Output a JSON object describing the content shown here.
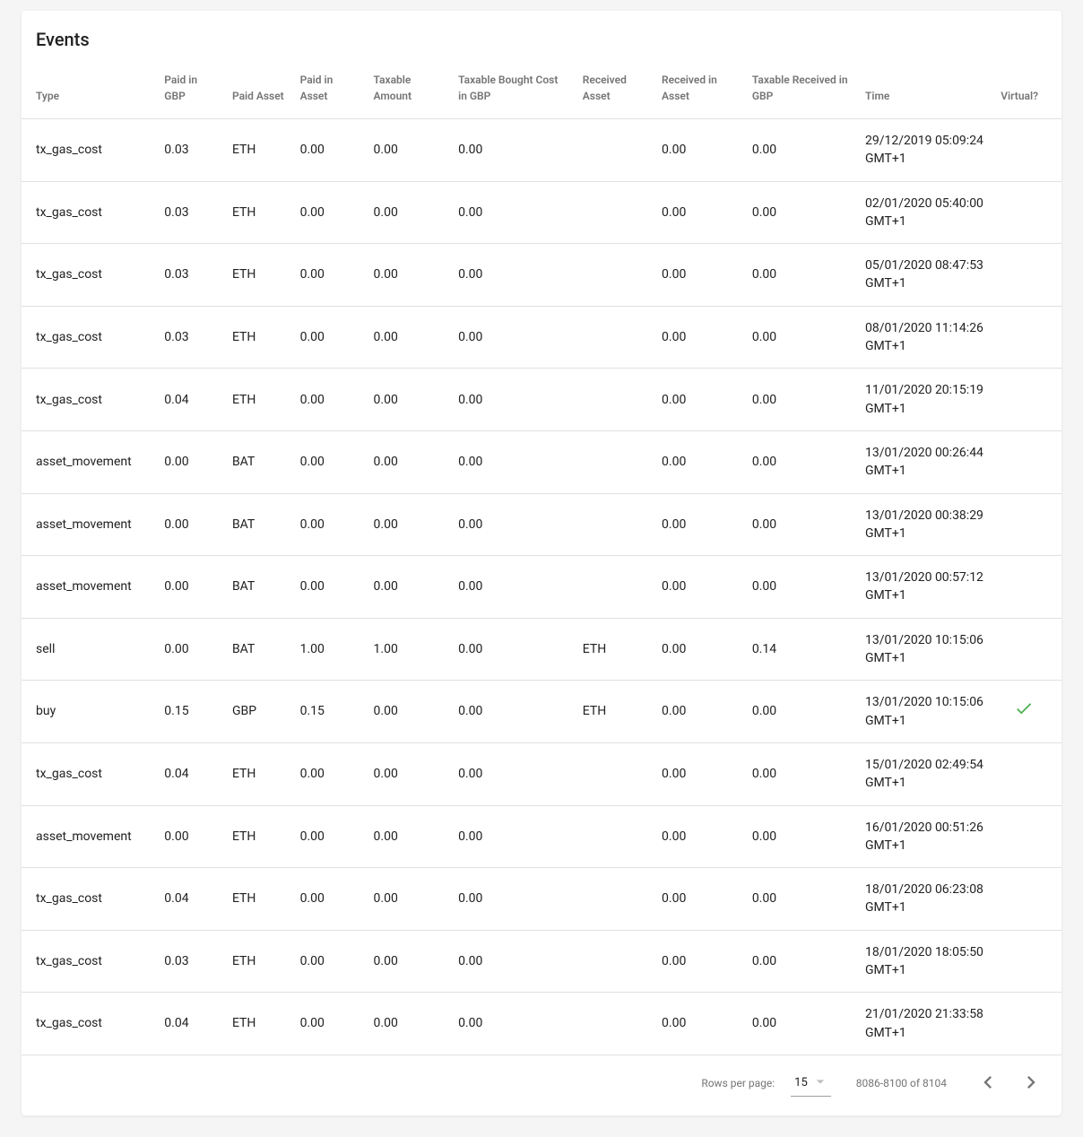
{
  "title": "Events",
  "columns": [
    "Type",
    "Paid in GBP",
    "Paid Asset",
    "Paid in Asset",
    "Taxable Amount",
    "Taxable Bought Cost in GBP",
    "Received Asset",
    "Received in Asset",
    "Taxable Received in GBP",
    "Time",
    "Virtual?"
  ],
  "rows": [
    {
      "type": "tx_gas_cost",
      "paid_in_gbp": "0.03",
      "paid_asset": "ETH",
      "paid_in_asset": "0.00",
      "taxable_amount": "0.00",
      "taxable_bought": "0.00",
      "received_asset": "",
      "received_in_asset": "0.00",
      "taxable_received": "0.00",
      "time": "29/12/2019 05:09:24 GMT+1",
      "virtual": false
    },
    {
      "type": "tx_gas_cost",
      "paid_in_gbp": "0.03",
      "paid_asset": "ETH",
      "paid_in_asset": "0.00",
      "taxable_amount": "0.00",
      "taxable_bought": "0.00",
      "received_asset": "",
      "received_in_asset": "0.00",
      "taxable_received": "0.00",
      "time": "02/01/2020 05:40:00 GMT+1",
      "virtual": false
    },
    {
      "type": "tx_gas_cost",
      "paid_in_gbp": "0.03",
      "paid_asset": "ETH",
      "paid_in_asset": "0.00",
      "taxable_amount": "0.00",
      "taxable_bought": "0.00",
      "received_asset": "",
      "received_in_asset": "0.00",
      "taxable_received": "0.00",
      "time": "05/01/2020 08:47:53 GMT+1",
      "virtual": false
    },
    {
      "type": "tx_gas_cost",
      "paid_in_gbp": "0.03",
      "paid_asset": "ETH",
      "paid_in_asset": "0.00",
      "taxable_amount": "0.00",
      "taxable_bought": "0.00",
      "received_asset": "",
      "received_in_asset": "0.00",
      "taxable_received": "0.00",
      "time": "08/01/2020 11:14:26 GMT+1",
      "virtual": false
    },
    {
      "type": "tx_gas_cost",
      "paid_in_gbp": "0.04",
      "paid_asset": "ETH",
      "paid_in_asset": "0.00",
      "taxable_amount": "0.00",
      "taxable_bought": "0.00",
      "received_asset": "",
      "received_in_asset": "0.00",
      "taxable_received": "0.00",
      "time": "11/01/2020 20:15:19 GMT+1",
      "virtual": false
    },
    {
      "type": "asset_movement",
      "paid_in_gbp": "0.00",
      "paid_asset": "BAT",
      "paid_in_asset": "0.00",
      "taxable_amount": "0.00",
      "taxable_bought": "0.00",
      "received_asset": "",
      "received_in_asset": "0.00",
      "taxable_received": "0.00",
      "time": "13/01/2020 00:26:44 GMT+1",
      "virtual": false
    },
    {
      "type": "asset_movement",
      "paid_in_gbp": "0.00",
      "paid_asset": "BAT",
      "paid_in_asset": "0.00",
      "taxable_amount": "0.00",
      "taxable_bought": "0.00",
      "received_asset": "",
      "received_in_asset": "0.00",
      "taxable_received": "0.00",
      "time": "13/01/2020 00:38:29 GMT+1",
      "virtual": false
    },
    {
      "type": "asset_movement",
      "paid_in_gbp": "0.00",
      "paid_asset": "BAT",
      "paid_in_asset": "0.00",
      "taxable_amount": "0.00",
      "taxable_bought": "0.00",
      "received_asset": "",
      "received_in_asset": "0.00",
      "taxable_received": "0.00",
      "time": "13/01/2020 00:57:12 GMT+1",
      "virtual": false
    },
    {
      "type": "sell",
      "paid_in_gbp": "0.00",
      "paid_asset": "BAT",
      "paid_in_asset": "1.00",
      "taxable_amount": "1.00",
      "taxable_bought": "0.00",
      "received_asset": "ETH",
      "received_in_asset": "0.00",
      "taxable_received": "0.14",
      "time": "13/01/2020 10:15:06 GMT+1",
      "virtual": false
    },
    {
      "type": "buy",
      "paid_in_gbp": "0.15",
      "paid_asset": "GBP",
      "paid_in_asset": "0.15",
      "taxable_amount": "0.00",
      "taxable_bought": "0.00",
      "received_asset": "ETH",
      "received_in_asset": "0.00",
      "taxable_received": "0.00",
      "time": "13/01/2020 10:15:06 GMT+1",
      "virtual": true
    },
    {
      "type": "tx_gas_cost",
      "paid_in_gbp": "0.04",
      "paid_asset": "ETH",
      "paid_in_asset": "0.00",
      "taxable_amount": "0.00",
      "taxable_bought": "0.00",
      "received_asset": "",
      "received_in_asset": "0.00",
      "taxable_received": "0.00",
      "time": "15/01/2020 02:49:54 GMT+1",
      "virtual": false
    },
    {
      "type": "asset_movement",
      "paid_in_gbp": "0.00",
      "paid_asset": "ETH",
      "paid_in_asset": "0.00",
      "taxable_amount": "0.00",
      "taxable_bought": "0.00",
      "received_asset": "",
      "received_in_asset": "0.00",
      "taxable_received": "0.00",
      "time": "16/01/2020 00:51:26 GMT+1",
      "virtual": false
    },
    {
      "type": "tx_gas_cost",
      "paid_in_gbp": "0.04",
      "paid_asset": "ETH",
      "paid_in_asset": "0.00",
      "taxable_amount": "0.00",
      "taxable_bought": "0.00",
      "received_asset": "",
      "received_in_asset": "0.00",
      "taxable_received": "0.00",
      "time": "18/01/2020 06:23:08 GMT+1",
      "virtual": false
    },
    {
      "type": "tx_gas_cost",
      "paid_in_gbp": "0.03",
      "paid_asset": "ETH",
      "paid_in_asset": "0.00",
      "taxable_amount": "0.00",
      "taxable_bought": "0.00",
      "received_asset": "",
      "received_in_asset": "0.00",
      "taxable_received": "0.00",
      "time": "18/01/2020 18:05:50 GMT+1",
      "virtual": false
    },
    {
      "type": "tx_gas_cost",
      "paid_in_gbp": "0.04",
      "paid_asset": "ETH",
      "paid_in_asset": "0.00",
      "taxable_amount": "0.00",
      "taxable_bought": "0.00",
      "received_asset": "",
      "received_in_asset": "0.00",
      "taxable_received": "0.00",
      "time": "21/01/2020 21:33:58 GMT+1",
      "virtual": false
    }
  ],
  "pagination": {
    "rows_label": "Rows per page:",
    "rows_value": "15",
    "range": "8086-8100 of 8104"
  },
  "colors": {
    "background": "#f5f5f5",
    "card_bg": "#ffffff",
    "text": "#212121",
    "muted": "#757575",
    "border": "#e0e0e0",
    "check": "#4caf50"
  }
}
